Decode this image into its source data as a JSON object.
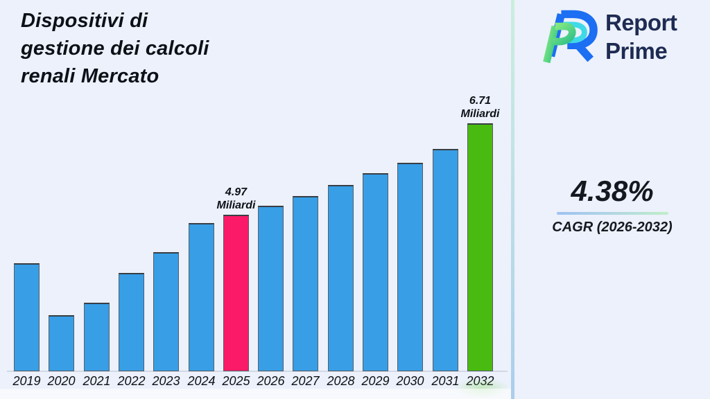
{
  "page": {
    "title": "Dispositivi di\ngestione dei calcoli\nrenali Mercato"
  },
  "logo": {
    "name": "Report Prime",
    "line1": "Report",
    "line2": "Prime",
    "colors": {
      "navy": "#1e2b52",
      "blue": "#1c6ef2",
      "cyan": "#3fd9e8",
      "green_light": "#8aec7f",
      "green_dark": "#2fc089"
    }
  },
  "cagr": {
    "value": "4.38%",
    "label": "CAGR (2026-2032)"
  },
  "chart_data": {
    "type": "bar",
    "title": "Dispositivi di gestione dei calcoli renali Mercato",
    "unit": "Miliardi",
    "categories": [
      "2019",
      "2020",
      "2021",
      "2022",
      "2023",
      "2024",
      "2025",
      "2026",
      "2027",
      "2028",
      "2029",
      "2030",
      "2031",
      "2032"
    ],
    "values": [
      4.05,
      3.07,
      3.3,
      3.87,
      4.26,
      4.82,
      4.97,
      5.15,
      5.33,
      5.54,
      5.76,
      5.96,
      6.22,
      6.71
    ],
    "ylim": [
      2.0,
      7.1
    ],
    "grid": false,
    "legend": false,
    "bar_color": "#389ee6",
    "highlight_colors": {
      "2025": "#fb1a67",
      "2032": "#49bb10"
    },
    "annotations": [
      {
        "year": "2025",
        "value_label": "4.97",
        "unit_label": "Miliardi"
      },
      {
        "year": "2032",
        "value_label": "6.71",
        "unit_label": "Miliardi"
      }
    ]
  }
}
